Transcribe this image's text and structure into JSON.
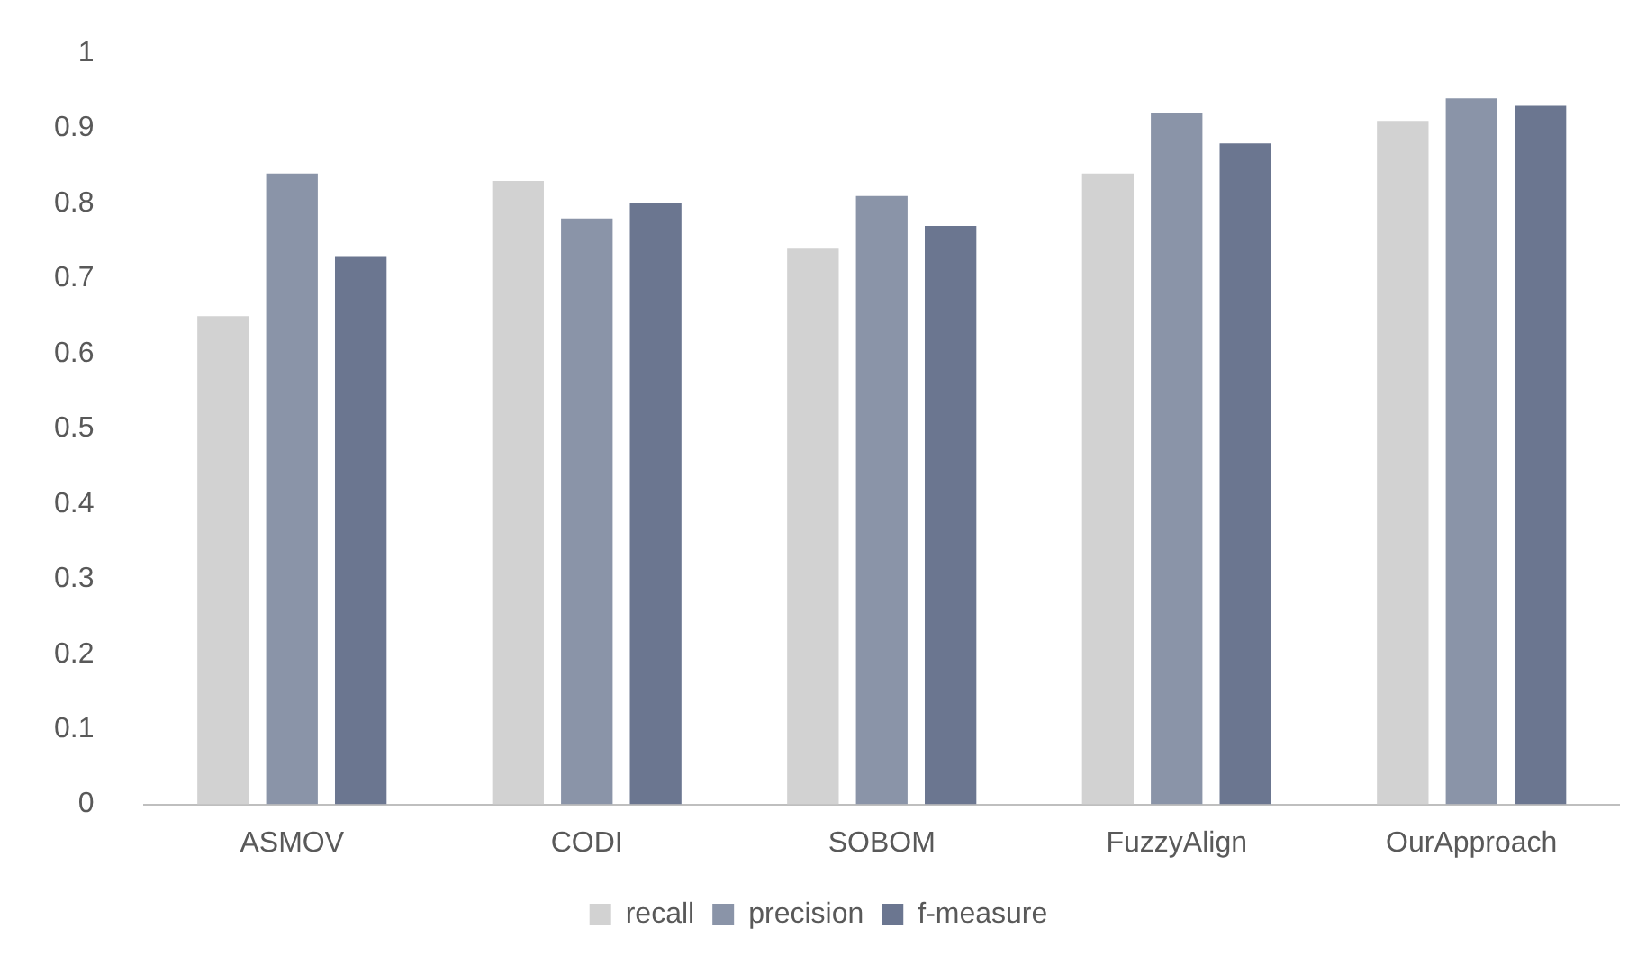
{
  "chart_data": {
    "type": "bar",
    "categories": [
      "ASMOV",
      "CODI",
      "SOBOM",
      "FuzzyAlign",
      "OurApproach"
    ],
    "series": [
      {
        "name": "recall",
        "color": "#d2d2d2",
        "values": [
          0.65,
          0.83,
          0.74,
          0.84,
          0.91
        ]
      },
      {
        "name": "precision",
        "color": "#8a94a8",
        "values": [
          0.84,
          0.78,
          0.81,
          0.92,
          0.94
        ]
      },
      {
        "name": "f-measure",
        "color": "#6b7690",
        "values": [
          0.73,
          0.8,
          0.77,
          0.88,
          0.93
        ]
      }
    ],
    "ylim": [
      0,
      1
    ],
    "yticks": [
      0,
      0.1,
      0.2,
      0.3,
      0.4,
      0.5,
      0.6,
      0.7,
      0.8,
      0.9,
      1
    ],
    "grid": false,
    "legend": "bottom"
  }
}
